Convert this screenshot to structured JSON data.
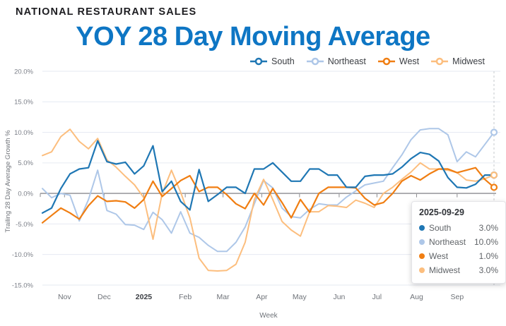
{
  "page": {
    "header": "NATIONAL RESTAURANT SALES",
    "title": "YOY 28 Day Moving Average",
    "title_color": "#0E76C4",
    "header_color": "#1D1D21",
    "background": "#FFFFFF"
  },
  "chart_data": {
    "type": "line",
    "title": "YOY 28 Day Moving Average",
    "xlabel": "Week",
    "ylabel": "Trailing 28 Day Average Growth %",
    "x_unit": "weekly points, 2024-10-21 through 2025-09-29",
    "n_points": 50,
    "ylim": [
      -15,
      20
    ],
    "grid": true,
    "legend_position": "top-right",
    "y_ticks": [
      {
        "value": 20,
        "label": "20.0%"
      },
      {
        "value": 15,
        "label": "15.0%"
      },
      {
        "value": 10,
        "label": "10.0%"
      },
      {
        "value": 5,
        "label": "5.0%"
      },
      {
        "value": 0,
        "label": "0.0%"
      },
      {
        "value": -5,
        "label": "-5.0%"
      },
      {
        "value": -10,
        "label": "-10.0%"
      },
      {
        "value": -15,
        "label": "-15.0%"
      }
    ],
    "x_ticks": [
      {
        "label": "Nov",
        "i": 2.4,
        "bold": false
      },
      {
        "label": "Dec",
        "i": 6.7,
        "bold": false
      },
      {
        "label": "2025",
        "i": 11.0,
        "bold": true
      },
      {
        "label": "Feb",
        "i": 15.5,
        "bold": false
      },
      {
        "label": "Mar",
        "i": 19.6,
        "bold": false
      },
      {
        "label": "Apr",
        "i": 23.8,
        "bold": false
      },
      {
        "label": "May",
        "i": 27.9,
        "bold": false
      },
      {
        "label": "Jun",
        "i": 32.2,
        "bold": false
      },
      {
        "label": "Jul",
        "i": 36.3,
        "bold": false
      },
      {
        "label": "Aug",
        "i": 40.6,
        "bold": false
      },
      {
        "label": "Sep",
        "i": 45.0,
        "bold": false
      }
    ],
    "end_rule": {
      "at_last_point": true,
      "style": "dashed",
      "color": "#C6C8CE"
    },
    "colors": {
      "grid": "#E6EAF2",
      "zero_line": "#8B8B8F",
      "tick_text": "#7B7F88",
      "month_text": "#6F7379",
      "month_bold_text": "#3B3E44",
      "axis_title_text": "#6F7379"
    },
    "series": [
      {
        "name": "South",
        "color": "#1F77B4",
        "values": [
          -3.2,
          -2.4,
          0.8,
          3.2,
          4.0,
          4.2,
          8.6,
          5.2,
          4.8,
          5.1,
          3.2,
          4.5,
          7.8,
          0.3,
          2.0,
          -1.3,
          -2.7,
          3.9,
          -1.3,
          -0.2,
          1.0,
          1.0,
          0.0,
          4.0,
          4.0,
          5.0,
          3.5,
          2.0,
          2.0,
          4.0,
          4.0,
          3.0,
          3.0,
          1.0,
          1.0,
          2.8,
          3.0,
          3.0,
          3.2,
          4.3,
          5.7,
          6.7,
          6.4,
          5.3,
          2.6,
          1.0,
          0.9,
          1.5,
          3.0,
          3.0
        ]
      },
      {
        "name": "Northeast",
        "color": "#AEC7E8",
        "values": [
          0.8,
          -0.7,
          0.0,
          -0.3,
          -4.5,
          -1.0,
          3.8,
          -2.8,
          -3.4,
          -5.1,
          -5.2,
          -5.9,
          -3.1,
          -4.3,
          -6.5,
          -3.0,
          -6.5,
          -7.2,
          -8.5,
          -9.5,
          -9.5,
          -8.0,
          -5.5,
          -1.7,
          2.1,
          0.9,
          -2.4,
          -3.8,
          -4.0,
          -2.6,
          -1.7,
          -1.9,
          -1.9,
          -0.6,
          0.4,
          1.4,
          1.7,
          2.0,
          4.2,
          6.3,
          8.8,
          10.4,
          10.6,
          10.6,
          9.6,
          5.2,
          6.8,
          6.0,
          8.0,
          10.0
        ]
      },
      {
        "name": "West",
        "color": "#F07E12",
        "values": [
          -4.8,
          -3.6,
          -2.4,
          -3.2,
          -4.2,
          -2.0,
          -0.4,
          -1.3,
          -1.2,
          -1.4,
          -2.4,
          -1.0,
          2.0,
          -0.5,
          0.8,
          2.1,
          2.9,
          0.3,
          1.0,
          1.0,
          -0.2,
          -1.7,
          -2.5,
          0.0,
          -1.9,
          0.8,
          -1.5,
          -4.0,
          -1.0,
          -3.1,
          0.0,
          1.0,
          1.0,
          1.0,
          0.9,
          -0.8,
          -1.9,
          -1.5,
          0.0,
          2.0,
          2.9,
          2.2,
          3.2,
          4.0,
          4.0,
          3.4,
          3.8,
          4.2,
          2.3,
          1.0
        ]
      },
      {
        "name": "Midwest",
        "color": "#FCBE7E",
        "values": [
          6.2,
          6.8,
          9.3,
          10.5,
          8.5,
          7.3,
          9.0,
          5.5,
          4.3,
          2.8,
          1.4,
          -0.7,
          -7.5,
          0.0,
          3.8,
          0.2,
          -4.0,
          -10.6,
          -12.6,
          -12.7,
          -12.6,
          -11.6,
          -8.0,
          -1.0,
          2.3,
          -1.0,
          -4.6,
          -6.0,
          -7.0,
          -3.0,
          -3.0,
          -2.0,
          -2.1,
          -2.3,
          -1.1,
          -1.6,
          -2.3,
          0.0,
          1.0,
          2.3,
          3.5,
          5.0,
          4.0,
          4.0,
          3.8,
          3.4,
          2.2,
          2.0,
          2.4,
          3.0
        ]
      }
    ]
  },
  "tooltip": {
    "date": "2025-09-29",
    "rows": [
      {
        "name": "South",
        "value": "3.0%",
        "color": "#1F77B4"
      },
      {
        "name": "Northeast",
        "value": "10.0%",
        "color": "#AEC7E8"
      },
      {
        "name": "West",
        "value": "1.0%",
        "color": "#F07E12"
      },
      {
        "name": "Midwest",
        "value": "3.0%",
        "color": "#FCBE7E"
      }
    ]
  }
}
